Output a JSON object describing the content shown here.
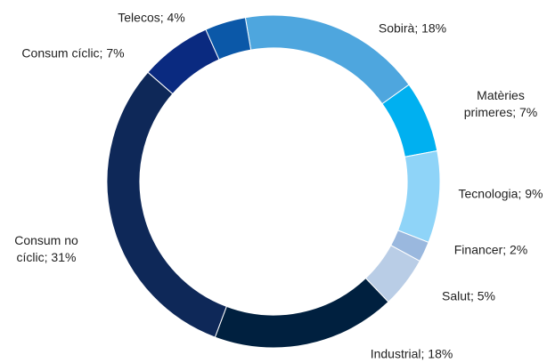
{
  "chart_data": {
    "type": "donut",
    "values": [
      18,
      7,
      9,
      2,
      5,
      18,
      31,
      7,
      4
    ],
    "value_labels": [
      "Sobirà; 18%",
      "Matèries primeres; 7%",
      "Tecnologia; 9%",
      "Financer; 2%",
      "Salut; 5%",
      "Industrial; 18%",
      "Consum no cíclic; 31%",
      "Consum cíclic; 7%",
      "Telecos; 4%"
    ],
    "colors": [
      "#4ea6de",
      "#00b0f0",
      "#8fd4f8",
      "#9ab8de",
      "#b9cde6",
      "#00203f",
      "#0e2858",
      "#0a2a80",
      "#0b58a8"
    ]
  }
}
